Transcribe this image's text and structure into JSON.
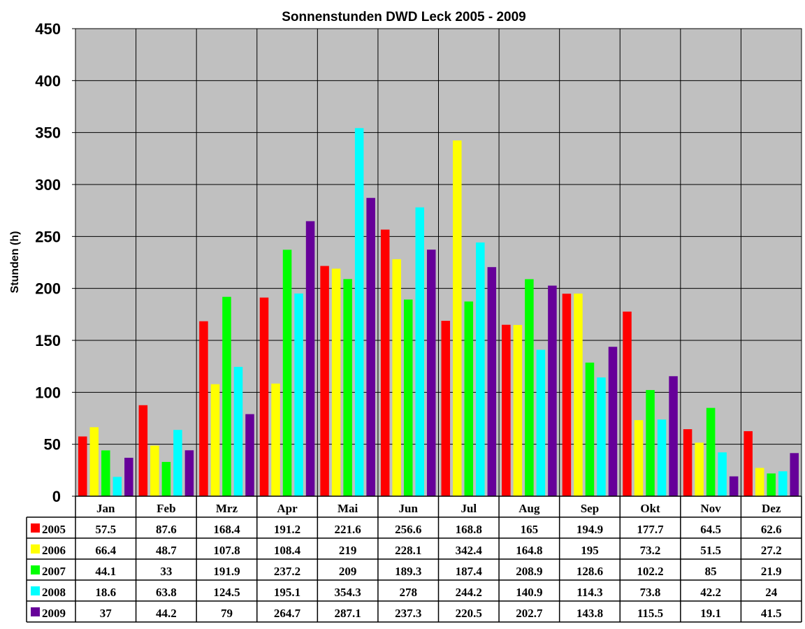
{
  "chart_data": {
    "type": "bar",
    "title": "Sonnenstunden DWD Leck 2005 - 2009",
    "ylabel": "Stunden (h)",
    "xlabel": "",
    "ylim": [
      0,
      450
    ],
    "yticks": [
      0,
      50,
      100,
      150,
      200,
      250,
      300,
      350,
      400,
      450
    ],
    "grid": true,
    "legend": "data-table-bottom",
    "categories": [
      "Jan",
      "Feb",
      "Mrz",
      "Apr",
      "Mai",
      "Jun",
      "Jul",
      "Aug",
      "Sep",
      "Okt",
      "Nov",
      "Dez"
    ],
    "series": [
      {
        "name": "2005",
        "color": "#ff0000",
        "values": [
          57.5,
          87.6,
          168.4,
          191.2,
          221.6,
          256.6,
          168.8,
          165,
          194.9,
          177.7,
          64.5,
          62.6
        ]
      },
      {
        "name": "2006",
        "color": "#ffff00",
        "values": [
          66.4,
          48.7,
          107.8,
          108.4,
          219,
          228.1,
          342.4,
          164.8,
          195,
          73.2,
          51.5,
          27.2
        ]
      },
      {
        "name": "2007",
        "color": "#00ff00",
        "values": [
          44.1,
          33,
          191.9,
          237.2,
          209,
          189.3,
          187.4,
          208.9,
          128.6,
          102.2,
          85,
          21.9
        ]
      },
      {
        "name": "2008",
        "color": "#00ffff",
        "values": [
          18.6,
          63.8,
          124.5,
          195.1,
          354.3,
          278,
          244.2,
          140.9,
          114.3,
          73.8,
          42.2,
          24
        ]
      },
      {
        "name": "2009",
        "color": "#660099",
        "values": [
          37,
          44.2,
          79,
          264.7,
          287.1,
          237.3,
          220.5,
          202.7,
          143.8,
          115.5,
          19.1,
          41.5
        ]
      }
    ],
    "plot_background": "#c0c0c0"
  }
}
